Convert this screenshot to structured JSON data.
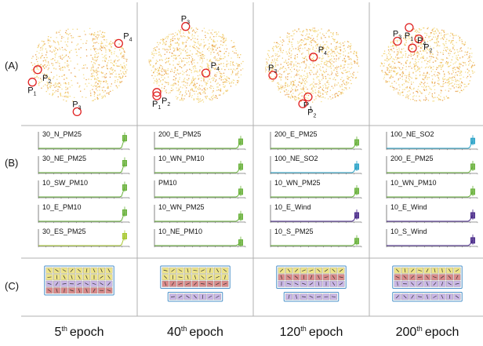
{
  "row_labels": [
    "(A)",
    "(B)",
    "(C)"
  ],
  "epochs": [
    {
      "num": "5",
      "sup": "th",
      "word": "epoch",
      "points": [
        {
          "id": "1",
          "x": 0.06,
          "y": 0.66
        },
        {
          "id": "2",
          "x": 0.11,
          "y": 0.55
        },
        {
          "id": "3",
          "x": 0.48,
          "y": 0.92
        },
        {
          "id": "4",
          "x": 0.87,
          "y": 0.32
        }
      ],
      "charts": [
        {
          "title": "30_N_PM25",
          "color": "#6ab23c",
          "end": 0.8
        },
        {
          "title": "30_NE_PM25",
          "color": "#6ab23c",
          "end": 0.75
        },
        {
          "title": "10_SW_PM10",
          "color": "#6ab23c",
          "end": 0.75
        },
        {
          "title": "10_E_PM10",
          "color": "#6ab23c",
          "end": 0.7
        },
        {
          "title": "30_ES_PM25",
          "color": "#a8c830",
          "end": 0.75
        }
      ],
      "panel": [
        {
          "cls": "y",
          "n": 9
        },
        {
          "cls": "y",
          "n": 9
        },
        {
          "cls": "v",
          "n": 9
        },
        {
          "cls": "r",
          "n": 9
        }
      ]
    },
    {
      "num": "40",
      "sup": "th",
      "word": "epoch",
      "points": [
        {
          "id": "1",
          "x": 0.14,
          "y": 0.78
        },
        {
          "id": "2",
          "x": 0.14,
          "y": 0.75
        },
        {
          "id": "3",
          "x": 0.41,
          "y": 0.17
        },
        {
          "id": "4",
          "x": 0.6,
          "y": 0.58
        }
      ],
      "charts": [
        {
          "title": "200_E_PM25",
          "color": "#6ab23c",
          "end": 0.55
        },
        {
          "title": "10_WN_PM10",
          "color": "#6ab23c",
          "end": 0.5
        },
        {
          "title": "PM10",
          "color": "#6ab23c",
          "end": 0.45
        },
        {
          "title": "10_WN_PM25",
          "color": "#6ab23c",
          "end": 0.4
        },
        {
          "title": "10_NE_PM10",
          "color": "#6ab23c",
          "end": 0.3
        }
      ],
      "panel": [
        {
          "cls": "y",
          "n": 9
        },
        {
          "cls": "y",
          "n": 9
        },
        {
          "cls": "r",
          "n": 9
        },
        {
          "cls": "v",
          "n": 7
        }
      ]
    },
    {
      "num": "120",
      "sup": "th",
      "word": "epoch",
      "points": [
        {
          "id": "1",
          "x": 0.47,
          "y": 0.79
        },
        {
          "id": "2",
          "x": 0.42,
          "y": 0.85
        },
        {
          "id": "3",
          "x": 0.14,
          "y": 0.6
        },
        {
          "id": "4",
          "x": 0.52,
          "y": 0.44
        }
      ],
      "charts": [
        {
          "title": "200_E_PM25",
          "color": "#6ab23c",
          "end": 0.5
        },
        {
          "title": "100_NE_SO2",
          "color": "#2ba3c8",
          "end": 0.5
        },
        {
          "title": "10_WN_PM25",
          "color": "#6ab23c",
          "end": 0.5
        },
        {
          "title": "10_E_Wind",
          "color": "#4a2a8a",
          "end": 0.5
        },
        {
          "title": "10_S_PM25",
          "color": "#6ab23c",
          "end": 0.4
        }
      ],
      "panel": [
        {
          "cls": "y",
          "n": 9
        },
        {
          "cls": "r",
          "n": 9
        },
        {
          "cls": "v",
          "n": 9
        },
        {
          "cls": "v",
          "n": 7
        }
      ]
    },
    {
      "num": "200",
      "sup": "th",
      "word": "epoch",
      "points": [
        {
          "id": "1",
          "x": 0.33,
          "y": 0.18
        },
        {
          "id": "2",
          "x": 0.42,
          "y": 0.28
        },
        {
          "id": "3",
          "x": 0.22,
          "y": 0.3
        },
        {
          "id": "4",
          "x": 0.36,
          "y": 0.36
        }
      ],
      "charts": [
        {
          "title": "100_NE_SO2",
          "color": "#2ba3c8",
          "end": 0.6
        },
        {
          "title": "200_E_PM25",
          "color": "#6ab23c",
          "end": 0.5
        },
        {
          "title": "10_WN_PM10",
          "color": "#6ab23c",
          "end": 0.45
        },
        {
          "title": "10_E_Wind",
          "color": "#4a2a8a",
          "end": 0.5
        },
        {
          "title": "10_S_Wind",
          "color": "#4a2a8a",
          "end": 0.45
        }
      ],
      "panel": [
        {
          "cls": "y",
          "n": 9
        },
        {
          "cls": "r",
          "n": 9
        },
        {
          "cls": "v",
          "n": 9
        },
        {
          "cls": "v",
          "n": 9
        }
      ]
    }
  ],
  "colors": {
    "grid": "#b0b0b0",
    "circle": "#e02020",
    "cell_yellow": "#ede48a",
    "cell_red": "#d98a8a",
    "cell_violet": "#c9b6e6",
    "panel_border": "#4a90c8"
  }
}
